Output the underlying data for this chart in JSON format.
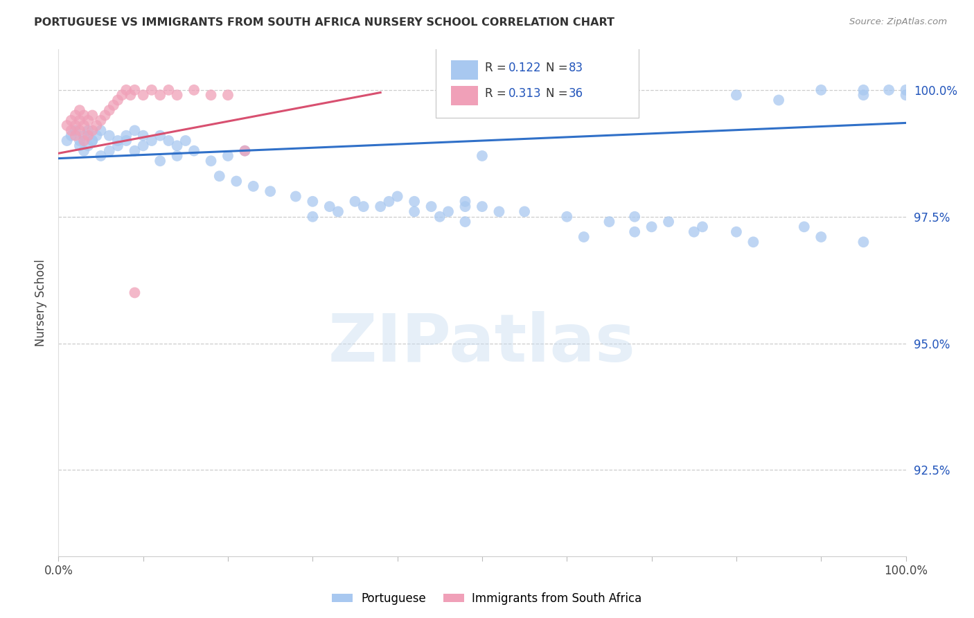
{
  "title": "PORTUGUESE VS IMMIGRANTS FROM SOUTH AFRICA NURSERY SCHOOL CORRELATION CHART",
  "source": "Source: ZipAtlas.com",
  "ylabel": "Nursery School",
  "xlim": [
    0.0,
    1.0
  ],
  "ylim": [
    0.908,
    1.008
  ],
  "yticks": [
    0.925,
    0.95,
    0.975,
    1.0
  ],
  "ytick_labels": [
    "92.5%",
    "95.0%",
    "97.5%",
    "100.0%"
  ],
  "xticks": [
    0.0,
    0.1,
    0.2,
    0.3,
    0.4,
    0.5,
    0.6,
    0.7,
    0.8,
    0.9,
    1.0
  ],
  "xtick_labels": [
    "0.0%",
    "",
    "",
    "",
    "",
    "",
    "",
    "",
    "",
    "",
    "100.0%"
  ],
  "blue_color": "#A8C8F0",
  "pink_color": "#F0A0B8",
  "blue_line_color": "#3070C8",
  "pink_line_color": "#D85070",
  "legend_blue_r": "0.122",
  "legend_blue_n": "83",
  "legend_pink_r": "0.313",
  "legend_pink_n": "36",
  "watermark": "ZIPatlas",
  "blue_scatter_x": [
    0.01,
    0.015,
    0.02,
    0.025,
    0.03,
    0.035,
    0.04,
    0.025,
    0.03,
    0.035,
    0.04,
    0.045,
    0.05,
    0.06,
    0.07,
    0.08,
    0.09,
    0.1,
    0.05,
    0.06,
    0.07,
    0.08,
    0.09,
    0.1,
    0.11,
    0.12,
    0.13,
    0.14,
    0.15,
    0.12,
    0.14,
    0.16,
    0.18,
    0.2,
    0.22,
    0.19,
    0.21,
    0.23,
    0.25,
    0.28,
    0.3,
    0.32,
    0.35,
    0.38,
    0.4,
    0.42,
    0.44,
    0.46,
    0.48,
    0.5,
    0.52,
    0.3,
    0.33,
    0.36,
    0.39,
    0.42,
    0.45,
    0.48,
    0.68,
    0.72,
    0.76,
    0.8,
    0.9,
    0.95,
    1.0,
    0.95,
    0.98,
    0.48,
    0.5,
    0.55,
    0.6,
    0.65,
    0.7,
    0.75,
    0.8,
    0.85,
    0.9,
    0.95,
    1.0,
    0.62,
    0.68,
    0.82,
    0.88
  ],
  "blue_scatter_y": [
    0.99,
    0.991,
    0.992,
    0.99,
    0.991,
    0.992,
    0.99,
    0.989,
    0.988,
    0.989,
    0.99,
    0.991,
    0.992,
    0.991,
    0.99,
    0.991,
    0.992,
    0.991,
    0.987,
    0.988,
    0.989,
    0.99,
    0.988,
    0.989,
    0.99,
    0.991,
    0.99,
    0.989,
    0.99,
    0.986,
    0.987,
    0.988,
    0.986,
    0.987,
    0.988,
    0.983,
    0.982,
    0.981,
    0.98,
    0.979,
    0.978,
    0.977,
    0.978,
    0.977,
    0.979,
    0.978,
    0.977,
    0.976,
    0.977,
    0.987,
    0.976,
    0.975,
    0.976,
    0.977,
    0.978,
    0.976,
    0.975,
    0.974,
    0.975,
    0.974,
    0.973,
    0.972,
    0.971,
    0.97,
    0.999,
    0.999,
    1.0,
    0.978,
    0.977,
    0.976,
    0.975,
    0.974,
    0.973,
    0.972,
    0.999,
    0.998,
    1.0,
    1.0,
    1.0,
    0.971,
    0.972,
    0.97,
    0.973
  ],
  "pink_scatter_x": [
    0.01,
    0.015,
    0.02,
    0.025,
    0.015,
    0.02,
    0.025,
    0.03,
    0.02,
    0.025,
    0.03,
    0.035,
    0.04,
    0.03,
    0.035,
    0.04,
    0.045,
    0.05,
    0.055,
    0.06,
    0.065,
    0.07,
    0.075,
    0.08,
    0.085,
    0.09,
    0.1,
    0.11,
    0.12,
    0.13,
    0.14,
    0.16,
    0.18,
    0.2,
    0.22,
    0.09
  ],
  "pink_scatter_y": [
    0.993,
    0.994,
    0.995,
    0.996,
    0.992,
    0.993,
    0.994,
    0.995,
    0.991,
    0.992,
    0.993,
    0.994,
    0.995,
    0.99,
    0.991,
    0.992,
    0.993,
    0.994,
    0.995,
    0.996,
    0.997,
    0.998,
    0.999,
    1.0,
    0.999,
    1.0,
    0.999,
    1.0,
    0.999,
    1.0,
    0.999,
    1.0,
    0.999,
    0.999,
    0.988,
    0.96
  ],
  "blue_line_x_start": 0.0,
  "blue_line_x_end": 1.0,
  "blue_line_y_start": 0.9865,
  "blue_line_y_end": 0.9935,
  "pink_line_x_start": 0.0,
  "pink_line_x_end": 0.38,
  "pink_line_y_start": 0.9875,
  "pink_line_y_end": 0.9995
}
